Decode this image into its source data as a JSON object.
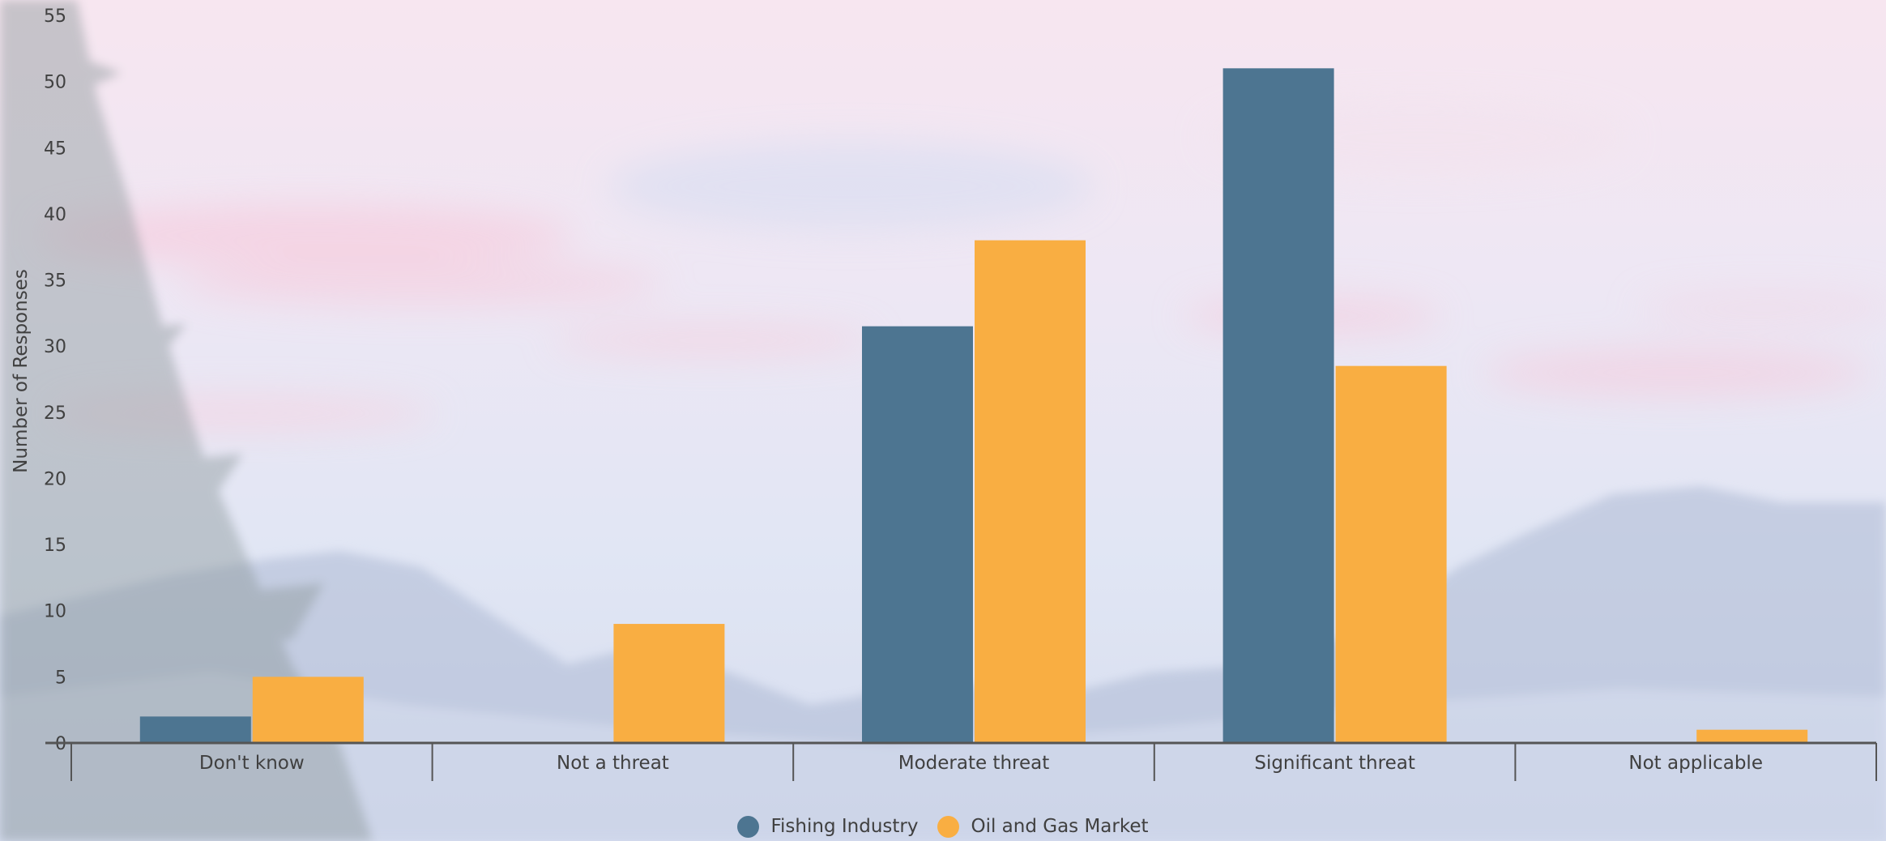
{
  "chart_data": {
    "type": "bar",
    "title": "",
    "xlabel": "",
    "ylabel": "Number of Responses",
    "ylim": [
      0,
      55
    ],
    "yticks": [
      0,
      5,
      10,
      15,
      20,
      25,
      30,
      35,
      40,
      45,
      50,
      55
    ],
    "grid": false,
    "legend_position": "bottom",
    "categories": [
      "Don't know",
      "Not a threat",
      "Moderate threat",
      "Significant threat",
      "Not applicable"
    ],
    "series": [
      {
        "name": "Fishing Industry",
        "color": "#4d7591",
        "values": [
          2,
          0,
          31.5,
          51,
          0
        ]
      },
      {
        "name": "Oil and Gas Market",
        "color": "#f9ae42",
        "values": [
          5,
          9,
          38,
          28.5,
          1
        ]
      }
    ]
  }
}
